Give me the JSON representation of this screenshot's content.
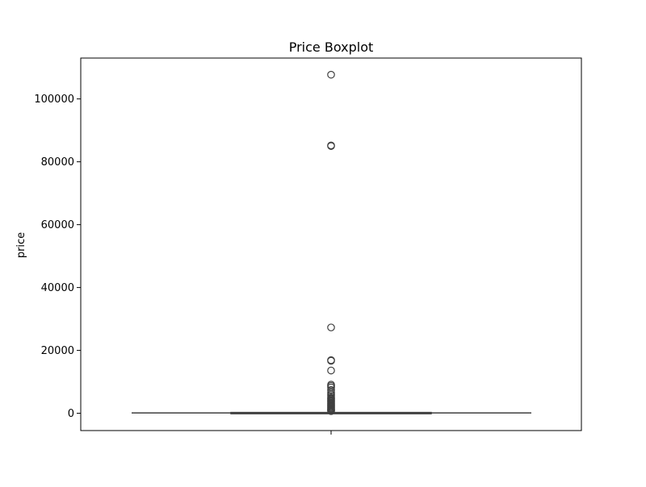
{
  "chart_data": {
    "type": "box",
    "title": "Price Boxplot",
    "xlabel": "",
    "ylabel": "price",
    "ylim": [
      -5500,
      113000
    ],
    "yticks": [
      0,
      20000,
      40000,
      60000,
      80000,
      100000
    ],
    "ytick_labels": [
      "0",
      "20000",
      "40000",
      "60000",
      "80000",
      "100000"
    ],
    "grid": false,
    "legend": "none",
    "colors": {
      "box_stroke": "#3f3f3f",
      "outlier_stroke": "#3f3f3f",
      "axes": "#000000"
    },
    "box": {
      "q1": 45,
      "median": 120,
      "q3": 250,
      "whisker_low": 0,
      "whisker_high": 550
    },
    "outliers": [
      107700,
      85200,
      85000,
      27300,
      16900,
      16700,
      13600,
      9100,
      8700,
      8200,
      7400,
      6600,
      6000,
      5500,
      5000,
      4700,
      4400,
      4100,
      3800,
      3500,
      3200,
      2900,
      2600,
      2300,
      2000,
      1700,
      1400,
      1100,
      900,
      700
    ]
  }
}
